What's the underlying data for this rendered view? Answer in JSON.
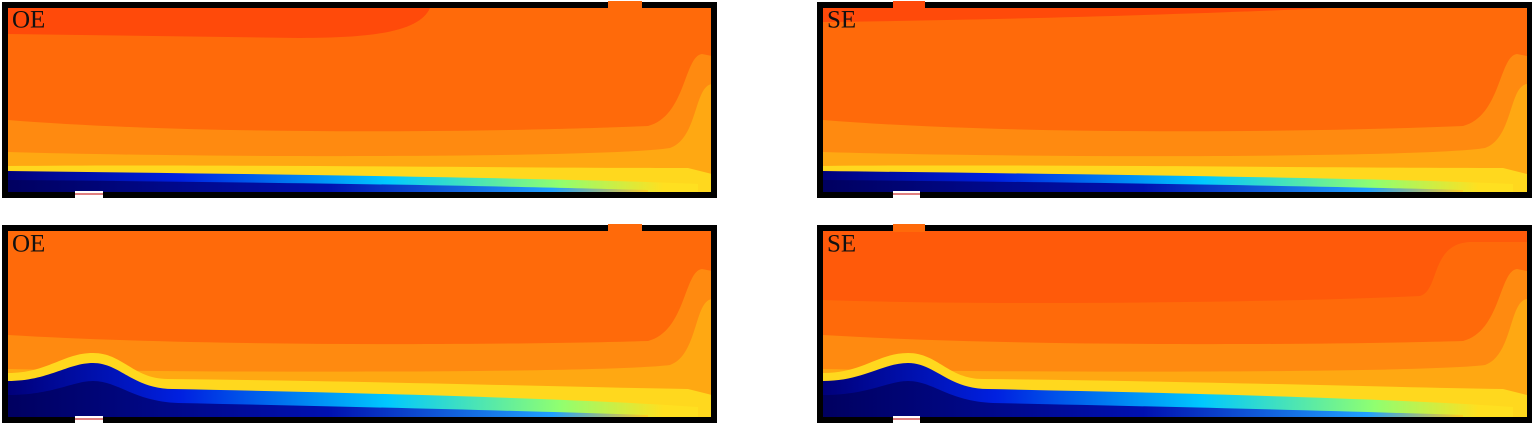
{
  "panels": [
    {
      "label": "OE"
    },
    {
      "label": "SE"
    },
    {
      "label": "OE"
    },
    {
      "label": "SE"
    }
  ]
}
